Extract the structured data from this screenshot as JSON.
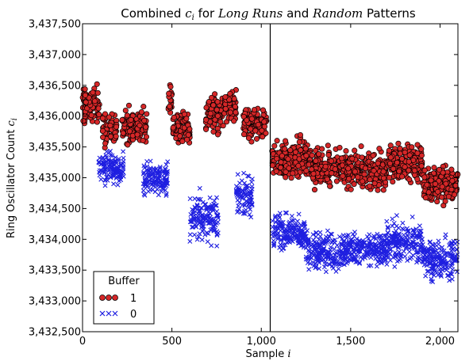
{
  "chart_data": {
    "type": "scatter",
    "title_parts": [
      "Combined ",
      "c",
      "i",
      " for ",
      "Long Runs",
      " and ",
      "Random",
      " Patterns"
    ],
    "xlabel_parts": [
      "Sample ",
      "i"
    ],
    "ylabel_parts": [
      "Ring Oscillator Count ",
      "c",
      "i"
    ],
    "xlim": [
      0,
      2100
    ],
    "ylim": [
      3432500,
      3437500
    ],
    "x_ticks": [
      0,
      500,
      1000,
      1500,
      2000
    ],
    "x_tick_labels": [
      "0",
      "500",
      "1,000",
      "1,500",
      "2,000"
    ],
    "y_ticks": [
      3432500,
      3433000,
      3433500,
      3434000,
      3434500,
      3435000,
      3435500,
      3436000,
      3436500,
      3437000,
      3437500
    ],
    "y_tick_labels": [
      "3,432,500",
      "3,433,000",
      "3,433,500",
      "3,434,000",
      "3,434,500",
      "3,435,000",
      "3,435,500",
      "3,436,000",
      "3,436,500",
      "3,437,000",
      "3,437,500"
    ],
    "vertical_line_x": 1050,
    "legend": {
      "title": "Buffer",
      "placement": "lower-left",
      "entries": [
        {
          "label": "1",
          "marker": "circle",
          "color": "#d62728"
        },
        {
          "label": "0",
          "marker": "x",
          "color": "#1f1fe0"
        }
      ]
    },
    "series": [
      {
        "name": "1",
        "marker": "circle",
        "color": "#d62728",
        "edge_color": "#000000",
        "clusters": [
          {
            "x_range": [
              0,
              95
            ],
            "mean": 3436150,
            "spread": 250
          },
          {
            "x_range": [
              110,
              190
            ],
            "mean": 3435800,
            "spread": 200
          },
          {
            "x_range": [
              220,
              300
            ],
            "mean": 3435800,
            "spread": 220
          },
          {
            "x_range": [
              300,
              360
            ],
            "mean": 3435850,
            "spread": 180
          },
          {
            "x_range": [
              480,
              500
            ],
            "mean": 3436300,
            "spread": 200
          },
          {
            "x_range": [
              505,
              600
            ],
            "mean": 3435800,
            "spread": 230
          },
          {
            "x_range": [
              690,
              790
            ],
            "mean": 3436050,
            "spread": 230
          },
          {
            "x_range": [
              790,
              860
            ],
            "mean": 3436150,
            "spread": 200
          },
          {
            "x_range": [
              900,
              1030
            ],
            "mean": 3435900,
            "spread": 200
          },
          {
            "x_range": [
              1060,
              1280
            ],
            "mean": 3435300,
            "spread": 230
          },
          {
            "x_range": [
              1280,
              1480
            ],
            "mean": 3435150,
            "spread": 250
          },
          {
            "x_range": [
              1480,
              1700
            ],
            "mean": 3435100,
            "spread": 230
          },
          {
            "x_range": [
              1700,
              1900
            ],
            "mean": 3435250,
            "spread": 230
          },
          {
            "x_range": [
              1900,
              2100
            ],
            "mean": 3434900,
            "spread": 220
          }
        ]
      },
      {
        "name": "0",
        "marker": "x",
        "color": "#1f1fe0",
        "clusters": [
          {
            "x_range": [
              90,
              230
            ],
            "mean": 3435150,
            "spread": 200
          },
          {
            "x_range": [
              340,
              480
            ],
            "mean": 3435000,
            "spread": 210
          },
          {
            "x_range": [
              600,
              760
            ],
            "mean": 3434350,
            "spread": 300
          },
          {
            "x_range": [
              860,
              950
            ],
            "mean": 3434700,
            "spread": 280
          },
          {
            "x_range": [
              1060,
              1250
            ],
            "mean": 3434100,
            "spread": 220
          },
          {
            "x_range": [
              1250,
              1480
            ],
            "mean": 3433800,
            "spread": 230
          },
          {
            "x_range": [
              1480,
              1700
            ],
            "mean": 3433850,
            "spread": 230
          },
          {
            "x_range": [
              1700,
              1900
            ],
            "mean": 3433950,
            "spread": 250
          },
          {
            "x_range": [
              1900,
              2100
            ],
            "mean": 3433700,
            "spread": 260
          }
        ]
      }
    ]
  }
}
